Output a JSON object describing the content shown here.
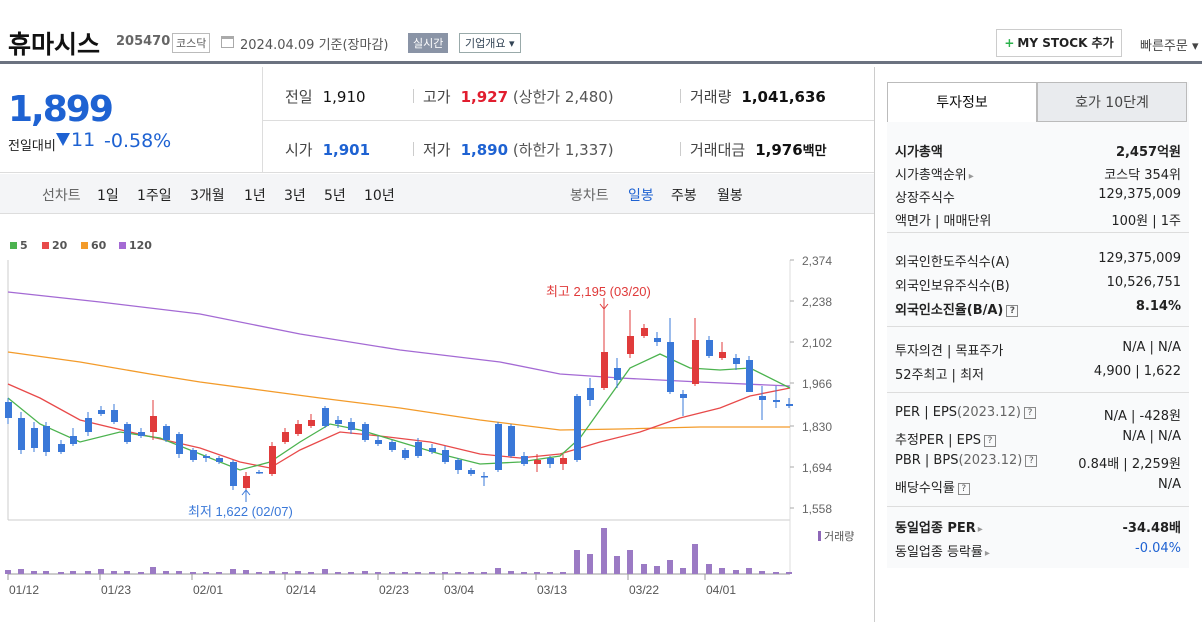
{
  "header": {
    "name": "휴마시스",
    "code": "205470",
    "market": "코스닥",
    "date": "2024.04.09 기준(장마감)",
    "realtime": "실시간",
    "overview": "기업개요",
    "mystock": "MY STOCK 추가",
    "quick": "빠른주문"
  },
  "price": {
    "current": "1,899",
    "change_label": "전일대비",
    "change": "11",
    "percent": "-0.58%"
  },
  "stats": {
    "prev_label": "전일",
    "prev": "1,910",
    "high_label": "고가",
    "high": "1,927",
    "upper": "(상한가 2,480)",
    "vol_label": "거래량",
    "vol": "1,041,636",
    "open_label": "시가",
    "open": "1,901",
    "low_label": "저가",
    "low": "1,890",
    "lower": "(하한가 1,337)",
    "amt_label": "거래대금",
    "amt": "1,976",
    "amt_unit": "백만"
  },
  "periods": {
    "line_label": "선차트",
    "line": [
      "1일",
      "1주일",
      "3개월",
      "1년",
      "3년",
      "5년",
      "10년"
    ],
    "candle_label": "봉차트",
    "candle": [
      "일봉",
      "주봉",
      "월봉"
    ]
  },
  "side": {
    "tab1": "투자정보",
    "tab2": "호가 10단계",
    "rows": [
      {
        "l": "시가총액",
        "v": "2,457억원"
      },
      {
        "l": "시가총액순위",
        "v": "코스닥 354위"
      },
      {
        "l": "상장주식수",
        "v": "129,375,009"
      },
      {
        "l": "액면가 | 매매단위",
        "v": "100원 | 1주"
      },
      {
        "l": "외국인한도주식수(A)",
        "v": "129,375,009"
      },
      {
        "l": "외국인보유주식수(B)",
        "v": "10,526,751"
      },
      {
        "l": "외국인소진율(B/A)",
        "v": "8.14%"
      },
      {
        "l": "투자의견 | 목표주가",
        "v": "N/A | N/A"
      },
      {
        "l": "52주최고 | 최저",
        "v": "4,900 | 1,622"
      },
      {
        "l": "PER | EPS",
        "l2": "(2023.12)",
        "v": "N/A | -428원"
      },
      {
        "l": "추정PER | EPS",
        "v": "N/A | N/A"
      },
      {
        "l": "PBR | BPS",
        "l2": "(2023.12)",
        "v": "0.84배 | 2,259원"
      },
      {
        "l": "배당수익률",
        "v": "N/A"
      },
      {
        "l": "동일업종 PER",
        "v": "-34.48배"
      },
      {
        "l": "동일업종 등락률",
        "v": "-0.04%"
      }
    ]
  },
  "chart_data": {
    "type": "candlestick",
    "ma_legend": [
      "5",
      "20",
      "60",
      "120"
    ],
    "ma_colors": [
      "#4cb34f",
      "#e84a4a",
      "#f39b2a",
      "#a46ad4"
    ],
    "y_ticks": [
      "2,374",
      "2,238",
      "2,102",
      "1,966",
      "1,830",
      "1,694",
      "1,558"
    ],
    "x_ticks": [
      "01/12",
      "01/23",
      "02/01",
      "02/14",
      "02/23",
      "03/04",
      "03/13",
      "03/22",
      "04/01"
    ],
    "high_note": "최고 2,195 (03/20)",
    "low_note": "최저 1,622 (02/07)",
    "vol_label": "거래량",
    "up_color": "#e03b3b",
    "down_color": "#3a78d8"
  }
}
